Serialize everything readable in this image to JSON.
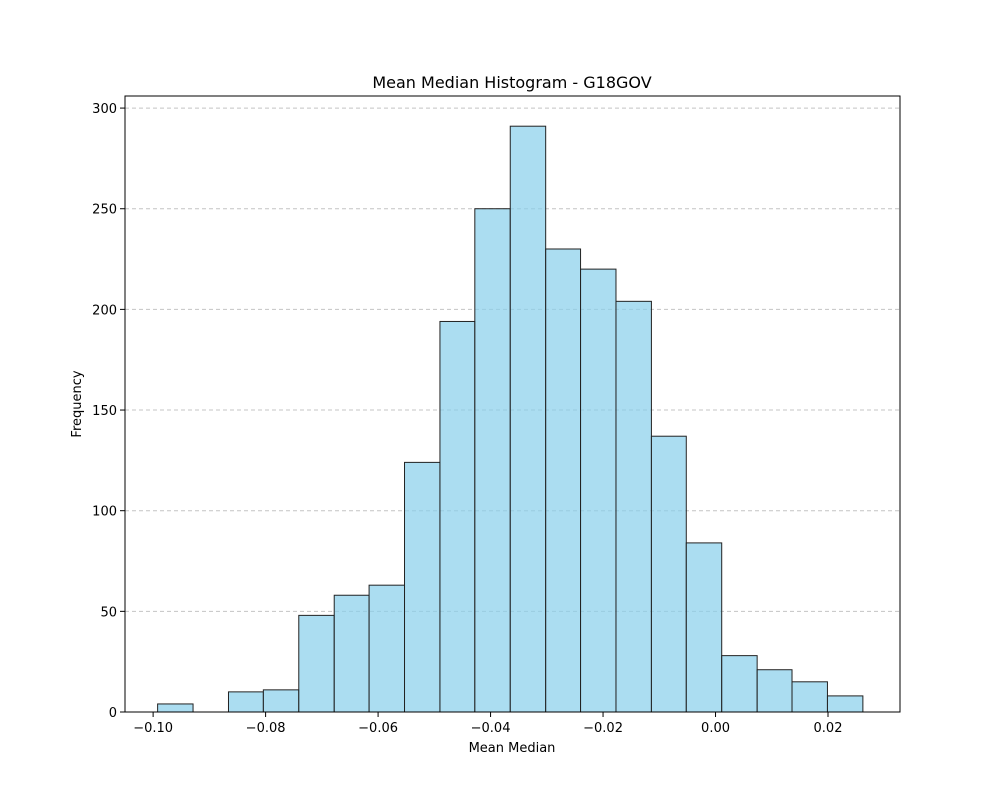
{
  "chart_data": {
    "type": "bar",
    "title": "Mean Median Histogram - G18GOV",
    "xlabel": "Mean Median",
    "ylabel": "Frequency",
    "xlim": [
      -0.105,
      0.0328
    ],
    "ylim": [
      0,
      306
    ],
    "x_ticks": [
      -0.1,
      -0.08,
      -0.06,
      -0.04,
      -0.02,
      0.0,
      0.02
    ],
    "x_tick_labels": [
      "−0.10",
      "−0.08",
      "−0.06",
      "−0.04",
      "−0.02",
      "0.00",
      "0.02"
    ],
    "y_ticks": [
      0,
      50,
      100,
      150,
      200,
      250,
      300
    ],
    "y_tick_labels": [
      "0",
      "50",
      "100",
      "150",
      "200",
      "250",
      "300"
    ],
    "grid": "y-dashed",
    "bin_edges": [
      -0.0992,
      -0.0929,
      -0.0866,
      -0.0804,
      -0.0741,
      -0.0678,
      -0.0616,
      -0.0553,
      -0.049,
      -0.0428,
      -0.0365,
      -0.0302,
      -0.024,
      -0.0177,
      -0.0114,
      -0.0052,
      0.0011,
      0.0074,
      0.0136,
      0.0199,
      0.0262
    ],
    "values": [
      4,
      0,
      10,
      11,
      48,
      58,
      63,
      124,
      194,
      250,
      291,
      230,
      220,
      204,
      137,
      84,
      28,
      21,
      15,
      8
    ],
    "colors": {
      "bar_fill": "#87ceeb",
      "bar_stroke": "#222222",
      "grid": "#c4c4c4"
    }
  }
}
